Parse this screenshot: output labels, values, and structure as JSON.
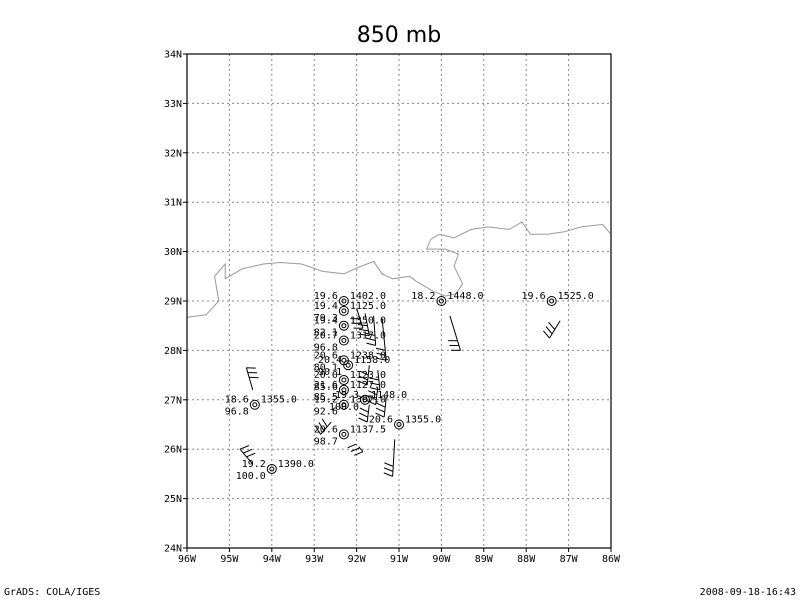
{
  "title": "850 mb",
  "footer": {
    "left": "GrADS: COLA/IGES",
    "right": "2008-09-18-16:43"
  },
  "map": {
    "lon_range": [
      -96,
      -86
    ],
    "lat_range": [
      24,
      34
    ],
    "x_ticks": [
      {
        "lon": -96,
        "label": "96W"
      },
      {
        "lon": -95,
        "label": "95W"
      },
      {
        "lon": -94,
        "label": "94W"
      },
      {
        "lon": -93,
        "label": "93W"
      },
      {
        "lon": -92,
        "label": "92W"
      },
      {
        "lon": -91,
        "label": "91W"
      },
      {
        "lon": -90,
        "label": "90W"
      },
      {
        "lon": -89,
        "label": "89W"
      },
      {
        "lon": -88,
        "label": "88W"
      },
      {
        "lon": -87,
        "label": "87W"
      },
      {
        "lon": -86,
        "label": "86W"
      }
    ],
    "y_ticks": [
      {
        "lat": 24,
        "label": "24N"
      },
      {
        "lat": 25,
        "label": "25N"
      },
      {
        "lat": 26,
        "label": "26N"
      },
      {
        "lat": 27,
        "label": "27N"
      },
      {
        "lat": 28,
        "label": "28N"
      },
      {
        "lat": 29,
        "label": "29N"
      },
      {
        "lat": 30,
        "label": "30N"
      },
      {
        "lat": 31,
        "label": "31N"
      },
      {
        "lat": 32,
        "label": "32N"
      },
      {
        "lat": 33,
        "label": "33N"
      },
      {
        "lat": 34,
        "label": "34N"
      }
    ],
    "grid": true,
    "coastline": [
      [
        -96.0,
        28.67
      ],
      [
        -95.55,
        28.72
      ],
      [
        -95.25,
        29.0
      ],
      [
        -95.35,
        29.5
      ],
      [
        -95.1,
        29.75
      ],
      [
        -95.1,
        29.45
      ],
      [
        -94.7,
        29.65
      ],
      [
        -94.2,
        29.75
      ],
      [
        -93.8,
        29.78
      ],
      [
        -93.3,
        29.75
      ],
      [
        -92.8,
        29.6
      ],
      [
        -92.3,
        29.55
      ],
      [
        -91.9,
        29.7
      ],
      [
        -91.6,
        29.8
      ],
      [
        -91.4,
        29.55
      ],
      [
        -91.15,
        29.45
      ],
      [
        -90.75,
        29.5
      ],
      [
        -90.6,
        29.4
      ],
      [
        -90.2,
        29.2
      ],
      [
        -89.9,
        29.1
      ],
      [
        -89.65,
        29.15
      ],
      [
        -89.5,
        29.35
      ],
      [
        -89.7,
        29.7
      ],
      [
        -89.6,
        29.95
      ],
      [
        -89.9,
        30.05
      ],
      [
        -90.1,
        30.05
      ],
      [
        -90.35,
        30.05
      ],
      [
        -90.25,
        30.25
      ],
      [
        -90.05,
        30.35
      ],
      [
        -89.7,
        30.28
      ],
      [
        -89.3,
        30.45
      ],
      [
        -88.9,
        30.5
      ],
      [
        -88.4,
        30.45
      ],
      [
        -88.1,
        30.6
      ],
      [
        -87.9,
        30.35
      ],
      [
        -87.5,
        30.35
      ],
      [
        -87.1,
        30.4
      ],
      [
        -86.7,
        30.5
      ],
      [
        -86.2,
        30.55
      ],
      [
        -86.0,
        30.35
      ]
    ],
    "stations": [
      {
        "lon": -92.3,
        "lat": 29.0,
        "tl": "19.6",
        "tr": "1402.0",
        "bl": "",
        "barb": [
          [
            -92.0,
            28.85
          ],
          [
            -91.85,
            28.45
          ]
        ]
      },
      {
        "lon": -92.3,
        "lat": 28.8,
        "tl": "19.4",
        "tr": "1125.0",
        "bl": "79.3",
        "barb": [
          [
            -91.8,
            28.75
          ],
          [
            -91.7,
            28.3
          ]
        ]
      },
      {
        "lon": -92.3,
        "lat": 28.5,
        "tl": "19.4",
        "tr": "1350.0",
        "bl": "82.1",
        "barb": [
          [
            -91.6,
            28.7
          ],
          [
            -91.55,
            28.1
          ]
        ]
      },
      {
        "lon": -92.3,
        "lat": 28.2,
        "tl": "20.7",
        "tr": "1317.0",
        "bl": "96.8",
        "barb": [
          [
            -91.4,
            28.65
          ],
          [
            -91.3,
            27.8
          ]
        ]
      },
      {
        "lon": -92.3,
        "lat": 27.8,
        "tl": "20.6",
        "tr": "1238.0",
        "bl": "80.1",
        "barb": [
          [
            -91.7,
            27.7
          ],
          [
            -91.75,
            27.3
          ]
        ]
      },
      {
        "lon": -92.2,
        "lat": 27.7,
        "tl": "20.4",
        "tr": "1158.0",
        "bl": "90.1",
        "barb": [
          [
            -91.5,
            27.6
          ],
          [
            -91.45,
            27.2
          ]
        ]
      },
      {
        "lon": -92.3,
        "lat": 27.4,
        "tl": "20.0",
        "tr": "1123.0",
        "bl": "85.6",
        "barb": [
          [
            -91.5,
            27.25
          ],
          [
            -91.55,
            26.9
          ]
        ]
      },
      {
        "lon": -92.3,
        "lat": 27.2,
        "tl": "21.6",
        "tr": "1127.0",
        "bl": "85.5",
        "barb": [
          [
            -91.3,
            27.05
          ],
          [
            -91.35,
            26.65
          ]
        ]
      },
      {
        "lon": -91.8,
        "lat": 27.0,
        "tl": "19.3",
        "tr": "1148.0",
        "bl": "100.0",
        "barb": [
          [
            -91.7,
            26.9
          ],
          [
            -91.75,
            26.55
          ]
        ]
      },
      {
        "lon": -92.3,
        "lat": 26.9,
        "tl": "19.2",
        "tr": "1397.0",
        "bl": "92.6",
        "barb": [
          [
            -92.6,
            26.55
          ],
          [
            -92.85,
            26.3
          ]
        ]
      },
      {
        "lon": -92.3,
        "lat": 26.3,
        "tl": "20.6",
        "tr": "1137.5",
        "bl": "98.7",
        "barb": [
          [
            -91.95,
            26.05
          ],
          [
            -91.85,
            25.95
          ]
        ]
      },
      {
        "lon": -91.0,
        "lat": 26.5,
        "tl": "20.6",
        "tr": "1355.0",
        "bl": "",
        "barb": [
          [
            -91.1,
            26.2
          ],
          [
            -91.15,
            25.45
          ]
        ]
      },
      {
        "lon": -90.0,
        "lat": 29.0,
        "tl": "18.2",
        "tr": "1448.0",
        "bl": "",
        "barb": [
          [
            -89.8,
            28.7
          ],
          [
            -89.55,
            28.0
          ]
        ]
      },
      {
        "lon": -87.4,
        "lat": 29.0,
        "tl": "19.6",
        "tr": "1525.0",
        "bl": "",
        "barb": [
          [
            -87.2,
            28.6
          ],
          [
            -87.45,
            28.25
          ]
        ]
      },
      {
        "lon": -94.4,
        "lat": 26.9,
        "tl": "18.6",
        "tr": "1355.0",
        "bl": "96.8",
        "barb": [
          [
            -94.45,
            27.2
          ],
          [
            -94.6,
            27.65
          ]
        ]
      },
      {
        "lon": -94.0,
        "lat": 25.6,
        "tl": "19.2",
        "tr": "1390.0",
        "bl": "100.0",
        "barb": [
          [
            -94.45,
            25.7
          ],
          [
            -94.75,
            26.0
          ]
        ]
      }
    ]
  }
}
